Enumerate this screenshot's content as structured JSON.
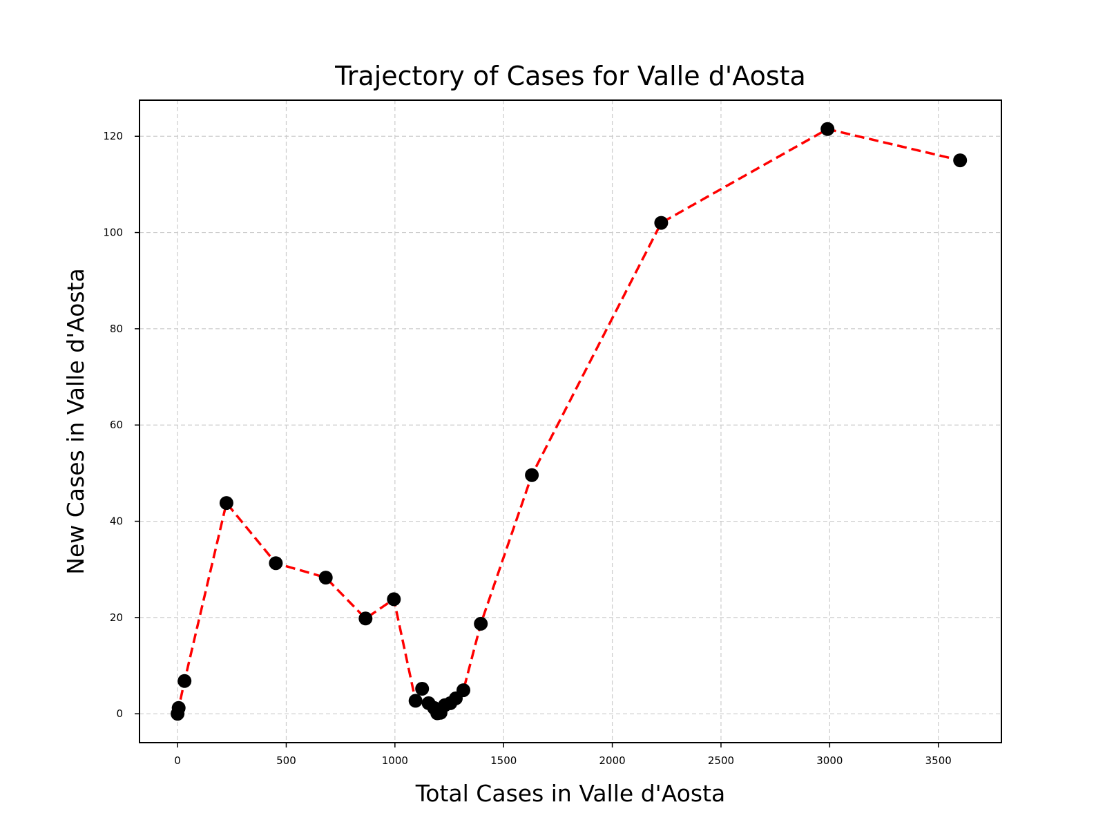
{
  "chart_data": {
    "type": "line",
    "title": "Trajectory of Cases for Valle d'Aosta",
    "xlabel": "Total Cases in Valle d'Aosta",
    "ylabel": "New Cases in Valle d'Aosta",
    "xlim": [
      -175,
      3790
    ],
    "ylim": [
      -6,
      127.5
    ],
    "xticks": [
      0,
      500,
      1000,
      1500,
      2000,
      2500,
      3000,
      3500
    ],
    "yticks": [
      0,
      20,
      40,
      60,
      80,
      100,
      120
    ],
    "grid": true,
    "line_color": "#ff0000",
    "line_style": "dashed",
    "marker_color": "#000000",
    "series": [
      {
        "x": [
          0,
          5,
          32,
          225,
          452,
          682,
          865,
          995,
          1095,
          1125,
          1155,
          1180,
          1195,
          1210,
          1230,
          1255,
          1280,
          1315,
          1395,
          1630,
          2225,
          2990,
          3600
        ],
        "y": [
          0,
          1.2,
          6.8,
          43.8,
          31.3,
          28.3,
          19.8,
          23.8,
          2.7,
          5.2,
          2.2,
          1.2,
          0.1,
          0.2,
          1.8,
          2.2,
          3.2,
          4.9,
          18.7,
          49.6,
          102,
          121.5,
          115
        ]
      }
    ]
  }
}
